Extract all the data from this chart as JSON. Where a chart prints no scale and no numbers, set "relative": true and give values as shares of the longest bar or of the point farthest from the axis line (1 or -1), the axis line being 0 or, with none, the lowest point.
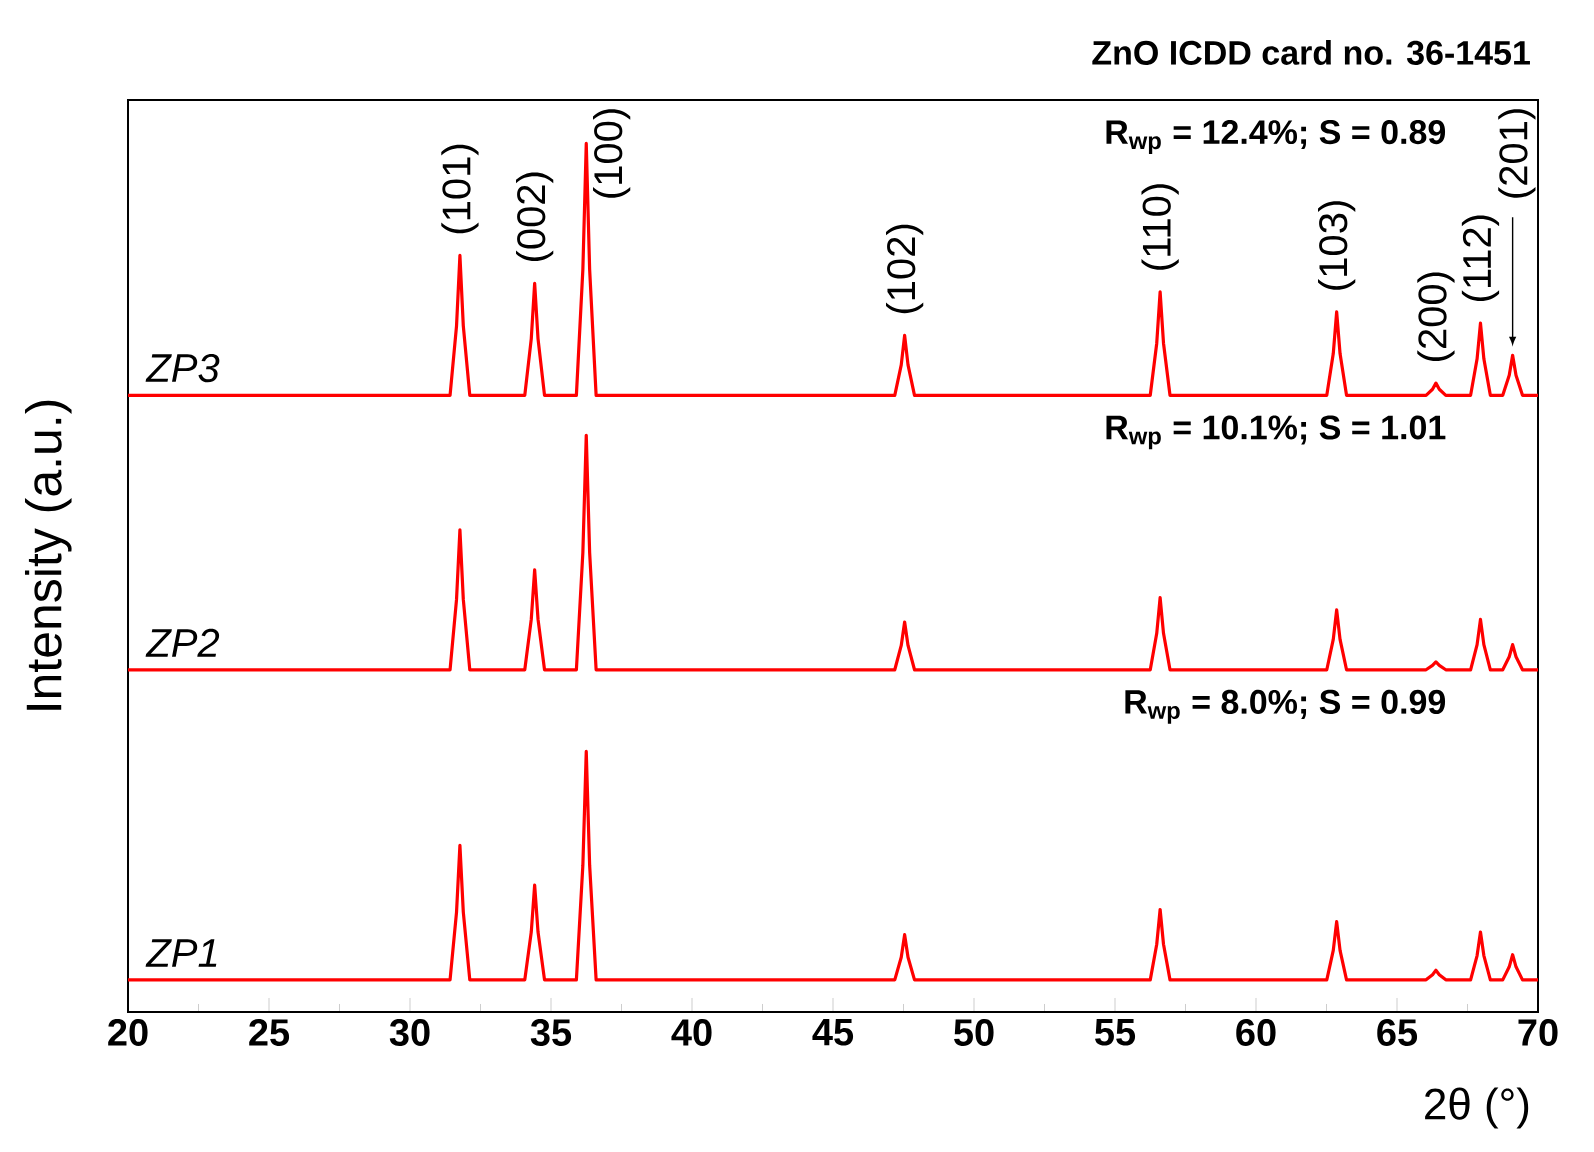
{
  "chart_data": {
    "type": "line",
    "title": "ZnO ICDD card no. 36-1451",
    "xlabel": "2θ (°)",
    "ylabel": "Intensity (a.u.)",
    "relative": true,
    "line_style": "solid",
    "xlim": [
      20,
      70
    ],
    "xticks": [
      20,
      25,
      30,
      35,
      40,
      45,
      50,
      55,
      60,
      65,
      70
    ],
    "x": [
      20,
      31.42,
      31.65,
      31.77,
      31.89,
      32.12,
      34.07,
      34.3,
      34.42,
      34.54,
      34.77,
      35.9,
      36.13,
      36.25,
      36.37,
      36.6,
      47.19,
      47.42,
      47.54,
      47.66,
      47.89,
      56.25,
      56.48,
      56.6,
      56.72,
      56.95,
      62.51,
      62.74,
      62.86,
      62.98,
      63.21,
      66.03,
      66.26,
      66.38,
      66.5,
      66.73,
      67.61,
      67.84,
      67.96,
      68.08,
      68.31,
      68.75,
      68.98,
      69.1,
      69.22,
      69.45,
      70
    ],
    "series": [
      {
        "name": "ZP3",
        "color": "#ff0000",
        "values": [
          0.71,
          0.71,
          0.79,
          0.871,
          0.79,
          0.71,
          0.71,
          0.775,
          0.839,
          0.775,
          0.71,
          0.71,
          0.855,
          1.0,
          0.855,
          0.71,
          0.71,
          0.745,
          0.779,
          0.745,
          0.71,
          0.71,
          0.77,
          0.829,
          0.77,
          0.71,
          0.71,
          0.758,
          0.806,
          0.758,
          0.71,
          0.71,
          0.717,
          0.724,
          0.717,
          0.71,
          0.71,
          0.752,
          0.793,
          0.752,
          0.71,
          0.71,
          0.733,
          0.756,
          0.733,
          0.71,
          0.71
        ]
      },
      {
        "name": "ZP2",
        "color": "#ff0000",
        "values": [
          0.394,
          0.394,
          0.475,
          0.555,
          0.475,
          0.394,
          0.394,
          0.452,
          0.509,
          0.452,
          0.394,
          0.394,
          0.529,
          0.664,
          0.529,
          0.394,
          0.394,
          0.422,
          0.449,
          0.422,
          0.394,
          0.394,
          0.436,
          0.477,
          0.436,
          0.394,
          0.394,
          0.429,
          0.463,
          0.429,
          0.394,
          0.394,
          0.399,
          0.403,
          0.399,
          0.394,
          0.394,
          0.423,
          0.452,
          0.423,
          0.394,
          0.394,
          0.409,
          0.423,
          0.409,
          0.394,
          0.394
        ]
      },
      {
        "name": "ZP1",
        "color": "#ff0000",
        "values": [
          0.037,
          0.037,
          0.115,
          0.192,
          0.115,
          0.037,
          0.037,
          0.092,
          0.146,
          0.092,
          0.037,
          0.037,
          0.169,
          0.3,
          0.169,
          0.037,
          0.037,
          0.063,
          0.089,
          0.063,
          0.037,
          0.037,
          0.078,
          0.118,
          0.078,
          0.037,
          0.037,
          0.071,
          0.104,
          0.071,
          0.037,
          0.037,
          0.043,
          0.048,
          0.043,
          0.037,
          0.037,
          0.065,
          0.092,
          0.065,
          0.037,
          0.037,
          0.052,
          0.066,
          0.052,
          0.037,
          0.037
        ]
      }
    ],
    "annotations": [
      {
        "text": "(101)",
        "x": 31.77,
        "y": 0.871
      },
      {
        "text": "(002)",
        "x": 34.42,
        "y": 0.839
      },
      {
        "text": "(100)",
        "x": 36.25,
        "y": 1.0
      },
      {
        "text": "(102)",
        "x": 47.54,
        "y": 0.779
      },
      {
        "text": "(110)",
        "x": 56.6,
        "y": 0.829
      },
      {
        "text": "(103)",
        "x": 62.86,
        "y": 0.806
      },
      {
        "text": "(200)",
        "x": 66.38,
        "y": 0.724
      },
      {
        "text": "(112)",
        "x": 67.96,
        "y": 0.793
      },
      {
        "text": "(201)",
        "x": 69.1,
        "y": 0.756
      },
      "R$_{wp}$ = 12.4%; S = 0.89",
      "R$_{wp}$ = 10.1%; S = 1.01",
      "R$_{wp}$ = 8.0%; S = 0.99"
    ]
  }
}
